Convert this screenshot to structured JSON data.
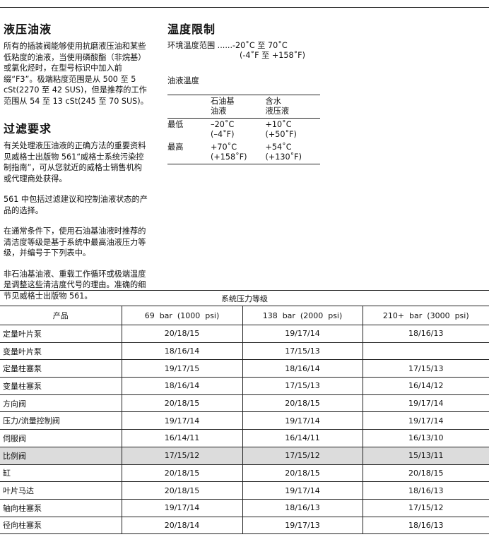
{
  "fluids": {
    "title": "液压油液",
    "text": "所有的插装阀能够使用抗磨液压油和某些低粘度的油液，当使用磷酸酯（非烷基）或氯化烃时，在型号标识中加入前缀“F3”。极端粘度范围是从 500 至 5 cSt(2270 至 42 SUS)，但是推荐的工作范围从 54 至 13 cSt(245 至 70 SUS)。"
  },
  "filtration": {
    "title": "过滤要求",
    "paragraphs": [
      "有关处理液压油液的正确方法的重要资料见威格士出版物 561“威格士系统污染控制指南”，可从您就近的威格士销售机构或代理商处获得。",
      "561 中包括过滤建议和控制油液状态的产品的选择。",
      "在通常条件下，使用石油基油液时推荐的清洁度等级是基于系统中最高油液压力等级，并编号于下列表中。",
      "非石油基油液、重载工作循环或极端温度是调整这些清洁度代号的理由。准确的细节见威格士出版物 561。"
    ]
  },
  "temperature": {
    "title": "温度限制",
    "ambient_label": "环境温度范围 ......-20˚C 至 70˚C",
    "ambient_f": "(-4˚F 至 +158˚F)",
    "fluid_title": "油液温度",
    "headers": [
      "",
      "石油基\n油液",
      "含水\n液压液"
    ],
    "rows": [
      {
        "label": "最低",
        "petro": "–20˚C\n(–4˚F)",
        "water": "+10˚C\n(+50˚F)"
      },
      {
        "label": "最高",
        "petro": "+70˚C\n(+158˚F)",
        "water": "+54˚C\n(+130˚F)"
      }
    ]
  },
  "cleanliness": {
    "caption": "系统压力等级",
    "headers": [
      "产品",
      "69  bar  (1000  psi)",
      "138  bar  (2000  psi)",
      "210+  bar  (3000  psi)"
    ],
    "highlight_color": "#dcdcdc",
    "rows": [
      [
        "定量叶片泵",
        "20/18/15",
        "19/17/14",
        "18/16/13"
      ],
      [
        "变量叶片泵",
        "18/16/14",
        "17/15/13",
        ""
      ],
      [
        "定量柱塞泵",
        "19/17/15",
        "18/16/14",
        "17/15/13"
      ],
      [
        "变量柱塞泵",
        "18/16/14",
        "17/15/13",
        "16/14/12"
      ],
      [
        "方向阀",
        "20/18/15",
        "20/18/15",
        "19/17/14"
      ],
      [
        "压力/流量控制阀",
        "19/17/14",
        "19/17/14",
        "19/17/14"
      ],
      [
        "伺服阀",
        "16/14/11",
        "16/14/11",
        "16/13/10"
      ],
      [
        "比例阀",
        "17/15/12",
        "17/15/12",
        "15/13/11"
      ],
      [
        "缸",
        "20/18/15",
        "20/18/15",
        "20/18/15"
      ],
      [
        "叶片马达",
        "20/18/15",
        "19/17/14",
        "18/16/13"
      ],
      [
        "轴向柱塞泵",
        "19/17/14",
        "18/16/13",
        "17/15/12"
      ],
      [
        "径向柱塞泵",
        "20/18/14",
        "19/17/13",
        "18/16/13"
      ]
    ],
    "highlighted_row": "比例阀"
  }
}
